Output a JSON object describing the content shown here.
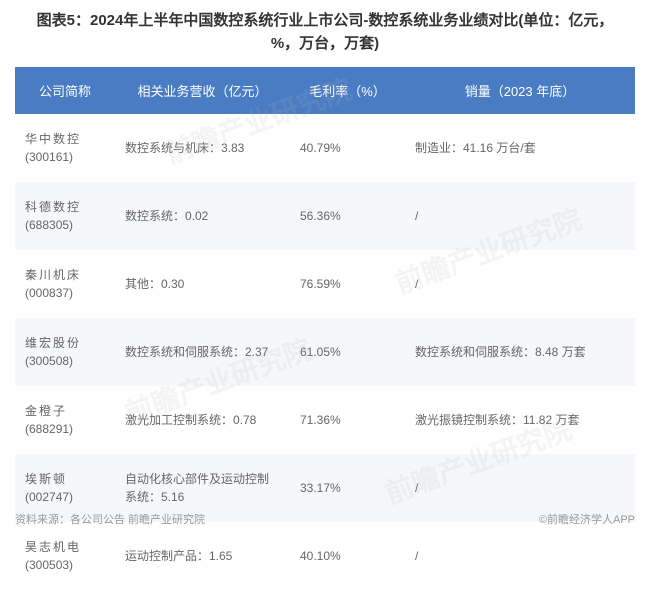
{
  "title": "图表5：2024年上半年中国数控系统行业上市公司-数控系统业务业绩对比(单位：亿元，%，万台，万套)",
  "table": {
    "type": "table",
    "header_bg": "#4a7cc4",
    "header_text_color": "#ffffff",
    "row_even_bg": "#f5f7fa",
    "row_odd_bg": "#ffffff",
    "cell_text_color": "#666666",
    "columns": [
      "公司简称",
      "相关业务营收（亿元）",
      "毛利率（%）",
      "销量（2023 年底）"
    ],
    "rows": [
      {
        "name": "华中数控",
        "code": "(300161)",
        "revenue": "数控系统与机床：3.83",
        "margin": "40.79%",
        "sales": "制造业：41.16 万台/套"
      },
      {
        "name": "科德数控",
        "code": "(688305)",
        "revenue": "数控系统：0.02",
        "margin": "56.36%",
        "sales": "/"
      },
      {
        "name": "秦川机床",
        "code": "(000837)",
        "revenue": "其他：0.30",
        "margin": "76.59%",
        "sales": "/"
      },
      {
        "name": "维宏股份",
        "code": "(300508)",
        "revenue": "数控系统和伺服系统：2.37",
        "margin": "61.05%",
        "sales": "数控系统和伺服系统：8.48 万套"
      },
      {
        "name": "金橙子",
        "code": "(688291)",
        "revenue": "激光加工控制系统：0.78",
        "margin": "71.36%",
        "sales": "激光振镜控制系统：11.82 万套"
      },
      {
        "name": "埃斯顿",
        "code": "(002747)",
        "revenue": "自动化核心部件及运动控制系统：5.16",
        "margin": "33.17%",
        "sales": "/"
      },
      {
        "name": "昊志机电",
        "code": "(300503)",
        "revenue": "运动控制产品：1.65",
        "margin": "40.10%",
        "sales": "/"
      }
    ]
  },
  "source": "资料来源：各公司公告 前瞻产业研究院",
  "copyright": "©前瞻经济学人APP",
  "watermark": "前瞻产业研究院"
}
